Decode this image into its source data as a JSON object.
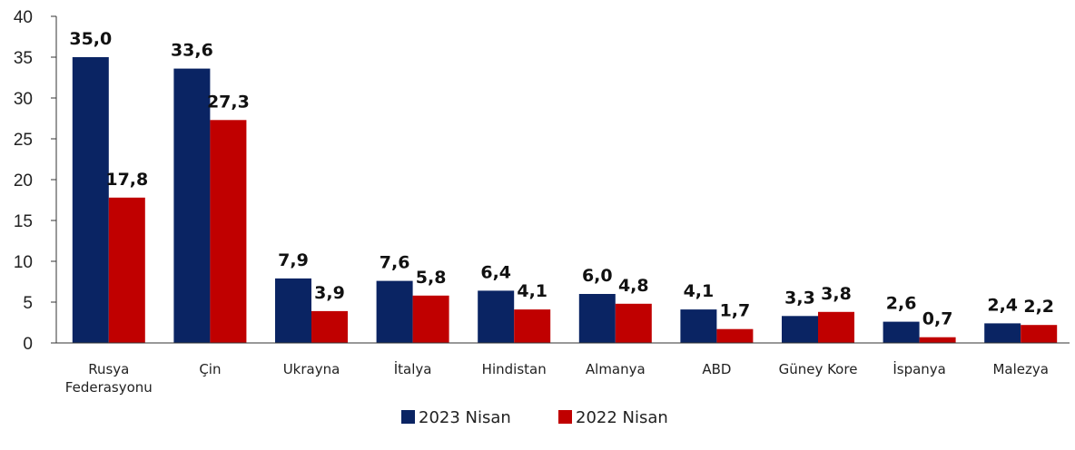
{
  "chart_data": {
    "type": "bar",
    "title": "",
    "xlabel": "",
    "ylabel": "",
    "ylim": [
      0,
      40
    ],
    "yticks": [
      0,
      5,
      10,
      15,
      20,
      25,
      30,
      35,
      40
    ],
    "grid": false,
    "legend_position": "bottom-center",
    "categories": [
      [
        "Rusya",
        "Federasyonu"
      ],
      [
        "Çin"
      ],
      [
        "Ukrayna"
      ],
      [
        "İtalya"
      ],
      [
        "Hindistan"
      ],
      [
        "Almanya"
      ],
      [
        "ABD"
      ],
      [
        "Güney Kore"
      ],
      [
        "İspanya"
      ],
      [
        "Malezya"
      ]
    ],
    "series": [
      {
        "name": "2023 Nisan",
        "color": "#0a2463",
        "values": [
          35.0,
          33.6,
          7.9,
          7.6,
          6.4,
          6.0,
          4.1,
          3.3,
          2.6,
          2.4
        ],
        "labels": [
          "35,0",
          "33,6",
          "7,9",
          "7,6",
          "6,4",
          "6,0",
          "4,1",
          "3,3",
          "2,6",
          "2,4"
        ]
      },
      {
        "name": "2022 Nisan",
        "color": "#c00000",
        "values": [
          17.8,
          27.3,
          3.9,
          5.8,
          4.1,
          4.8,
          1.7,
          3.8,
          0.7,
          2.2
        ],
        "labels": [
          "17,8",
          "27,3",
          "3,9",
          "5,8",
          "4,1",
          "4,8",
          "1,7",
          "3,8",
          "0,7",
          "2,2"
        ]
      }
    ]
  }
}
